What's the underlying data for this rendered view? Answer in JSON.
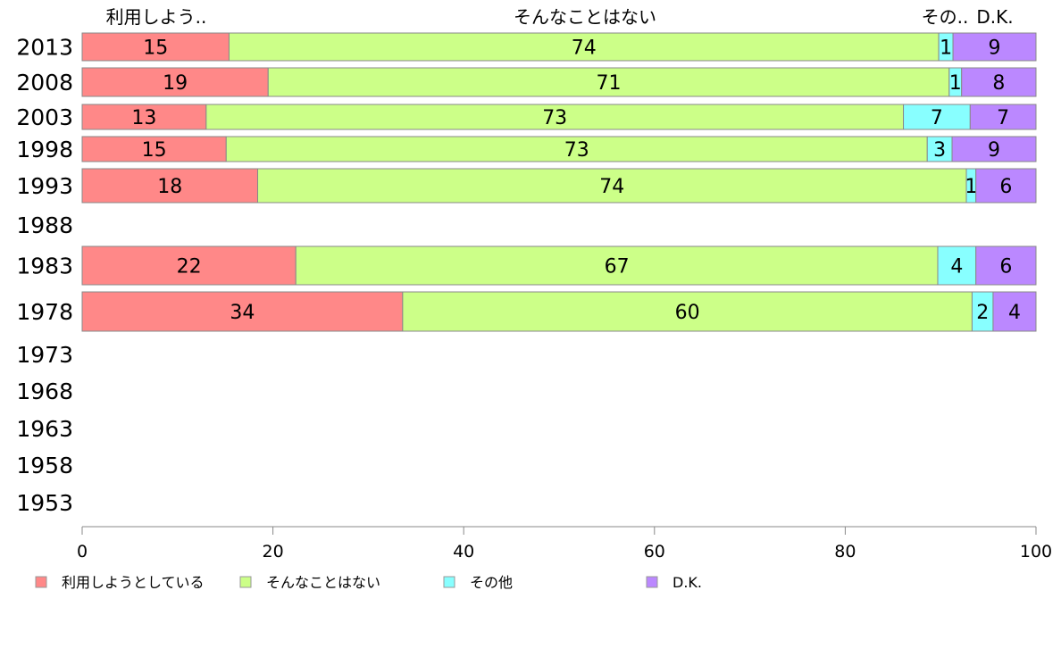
{
  "chart_data": {
    "type": "bar",
    "orientation": "horizontal",
    "stacked": true,
    "title": "",
    "xlabel": "",
    "ylabel": "",
    "xlim": [
      0,
      100
    ],
    "x_ticks": [
      "0",
      "20",
      "40",
      "60",
      "80",
      "100"
    ],
    "categories": [
      "2013",
      "2008",
      "2003",
      "1998",
      "1993",
      "1988",
      "1983",
      "1978",
      "1973",
      "1968",
      "1963",
      "1958",
      "1953"
    ],
    "column_headers": [
      "利用しよう..",
      "そんなことはない",
      "その..",
      "D.K."
    ],
    "series": [
      {
        "name": "利用しようとしている",
        "color": "#FF8888",
        "values": [
          15.4,
          19.5,
          13.0,
          15.1,
          18.4,
          null,
          22.4,
          33.6,
          null,
          null,
          null,
          null,
          null
        ],
        "labels": [
          "15",
          "19",
          "13",
          "15",
          "18",
          null,
          "22",
          "34",
          null,
          null,
          null,
          null,
          null
        ]
      },
      {
        "name": "そんなことはない",
        "color": "#CCFF88",
        "values": [
          74.4,
          71.4,
          73.1,
          73.5,
          74.3,
          null,
          67.3,
          59.7,
          null,
          null,
          null,
          null,
          null
        ],
        "labels": [
          "74",
          "71",
          "73",
          "73",
          "74",
          null,
          "67",
          "60",
          null,
          null,
          null,
          null,
          null
        ]
      },
      {
        "name": "その他",
        "color": "#88FFFF",
        "values": [
          1.5,
          1.3,
          7.0,
          2.6,
          1.0,
          null,
          4.0,
          2.2,
          null,
          null,
          null,
          null,
          null
        ],
        "labels": [
          "1",
          "1",
          "7",
          "3",
          "1",
          null,
          "4",
          "2",
          null,
          null,
          null,
          null,
          null
        ]
      },
      {
        "name": "D.K.",
        "color": "#BB88FF",
        "values": [
          8.7,
          7.8,
          6.9,
          8.8,
          6.3,
          null,
          6.3,
          4.5,
          null,
          null,
          null,
          null,
          null
        ],
        "labels": [
          "9",
          "8",
          "7",
          "9",
          "6",
          null,
          "6",
          "4",
          null,
          null,
          null,
          null,
          null
        ]
      }
    ],
    "legend_position": "bottom",
    "grid": false
  }
}
